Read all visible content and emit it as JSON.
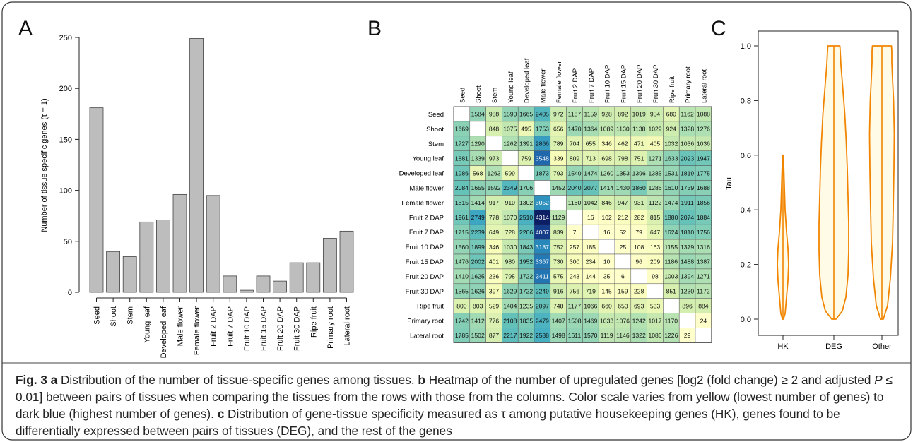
{
  "panel_a": {
    "label": "A"
  },
  "panel_b": {
    "label": "B"
  },
  "panel_c": {
    "label": "C"
  },
  "chart_data": [
    {
      "type": "bar",
      "ylabel": "Number of tissue specific genes (τ = 1)",
      "ylim": [
        0,
        250
      ],
      "yticks": [
        0,
        50,
        100,
        150,
        200,
        250
      ],
      "categories": [
        "Seed",
        "Shoot",
        "Stem",
        "Young leaf",
        "Developed leaf",
        "Male flower",
        "Female flower",
        "Fruit 2 DAP",
        "Fruit 7 DAP",
        "Fruit 10 DAP",
        "Fruit 15 DAP",
        "Fruit 20 DAP",
        "Fruit 30 DAP",
        "Ripe fruit",
        "Primary root",
        "Lateral root"
      ],
      "values": [
        181,
        40,
        35,
        69,
        71,
        96,
        249,
        95,
        16,
        2,
        16,
        11,
        29,
        29,
        53,
        60
      ],
      "colors": {
        "bar": "#bdbdbd"
      },
      "grid": false
    },
    {
      "type": "heatmap",
      "rows": [
        "Seed",
        "Shoot",
        "Stem",
        "Young leaf",
        "Developed leaf",
        "Male flower",
        "Female flower",
        "Fruit 2 DAP",
        "Fruit 7 DAP",
        "Fruit 10 DAP",
        "Fruit 15 DAP",
        "Fruit 20 DAP",
        "Fruit 30 DAP",
        "Ripe fruit",
        "Primary root",
        "Lateral root"
      ],
      "columns": [
        "Seed",
        "Shoot",
        "Stem",
        "Young leaf",
        "Developed leaf",
        "Male flower",
        "Female flower",
        "Fruit 2 DAP",
        "Fruit 7 DAP",
        "Fruit 10 DAP",
        "Fruit 15 DAP",
        "Fruit 20 DAP",
        "Fruit 30 DAP",
        "Ripe fruit",
        "Primary root",
        "Lateral root"
      ],
      "values": [
        [
          null,
          1584,
          988,
          1590,
          1665,
          2405,
          972,
          1187,
          1159,
          928,
          892,
          1019,
          954,
          680,
          1162,
          1088
        ],
        [
          1669,
          null,
          848,
          1075,
          495,
          1753,
          656,
          1470,
          1364,
          1089,
          1130,
          1138,
          1029,
          924,
          1328,
          1276
        ],
        [
          1727,
          1290,
          null,
          1262,
          1391,
          2866,
          789,
          704,
          655,
          346,
          462,
          471,
          405,
          1032,
          1036,
          1036
        ],
        [
          1881,
          1339,
          973,
          null,
          759,
          3548,
          339,
          809,
          713,
          698,
          798,
          751,
          1271,
          1633,
          2023,
          1947
        ],
        [
          1986,
          568,
          1263,
          599,
          null,
          1873,
          793,
          1540,
          1474,
          1260,
          1353,
          1396,
          1385,
          1531,
          1819,
          1775
        ],
        [
          2084,
          1655,
          1592,
          2349,
          1706,
          null,
          1452,
          2040,
          2077,
          1414,
          1430,
          1860,
          1286,
          1610,
          1739,
          1688
        ],
        [
          1815,
          1414,
          917,
          910,
          1302,
          3052,
          null,
          1160,
          1042,
          846,
          947,
          931,
          1122,
          1474,
          1911,
          1856
        ],
        [
          1961,
          2749,
          778,
          1070,
          2510,
          4314,
          1129,
          null,
          16,
          102,
          212,
          282,
          815,
          1880,
          2074,
          1884
        ],
        [
          1715,
          2239,
          649,
          728,
          2206,
          4007,
          839,
          7,
          null,
          16,
          52,
          79,
          647,
          1624,
          1810,
          1756
        ],
        [
          1560,
          1899,
          346,
          1030,
          1843,
          3187,
          752,
          257,
          185,
          null,
          25,
          108,
          163,
          1155,
          1379,
          1316
        ],
        [
          1476,
          2002,
          401,
          980,
          1952,
          3367,
          730,
          300,
          234,
          10,
          null,
          96,
          209,
          1186,
          1488,
          1387
        ],
        [
          1410,
          1625,
          236,
          795,
          1722,
          3411,
          575,
          243,
          144,
          35,
          6,
          null,
          98,
          1003,
          1394,
          1271
        ],
        [
          1565,
          1626,
          397,
          1629,
          1722,
          2249,
          916,
          756,
          719,
          145,
          159,
          228,
          null,
          851,
          1230,
          1172
        ],
        [
          800,
          803,
          529,
          1404,
          1235,
          2097,
          748,
          1177,
          1066,
          660,
          650,
          693,
          533,
          null,
          896,
          884
        ],
        [
          1742,
          1412,
          776,
          2108,
          1835,
          2479,
          1407,
          1508,
          1469,
          1033,
          1076,
          1242,
          1017,
          1170,
          null,
          24
        ],
        [
          1785,
          1502,
          877,
          2217,
          1922,
          2588,
          1498,
          1611,
          1570,
          1119,
          1146,
          1322,
          1086,
          1226,
          29,
          null
        ]
      ],
      "color_scale": {
        "low": "#ffffcc",
        "mid": "#41b6c4",
        "high": "#0c2c84"
      }
    },
    {
      "type": "violin",
      "ylabel": "Tau",
      "ylim": [
        0,
        1
      ],
      "yticks": [
        "0.0",
        "0.2",
        "0.4",
        "0.6",
        "0.8",
        "1.0"
      ],
      "categories": [
        "HK",
        "DEG",
        "Other"
      ],
      "ranges": [
        [
          0.0,
          0.6
        ],
        [
          0.0,
          1.0
        ],
        [
          0.0,
          1.0
        ]
      ],
      "colors": {
        "stroke": "#f28500",
        "fill": "#fffbe6"
      }
    }
  ],
  "caption": {
    "fig_label": "Fig. 3",
    "a_label": "a",
    "a_text": "Distribution of the number of tissue-specific genes among tissues.",
    "b_label": "b",
    "b_text_1": "Heatmap of the number of upregulated genes [log2 (fold change) ≥ 2 and adjusted",
    "b_p": "P",
    "b_text_2": "≤ 0.01] between pairs of tissues when comparing the tissues from the rows with those from the columns. Color scale varies from yellow (lowest number of genes) to dark blue (highest number of genes).",
    "c_label": "c",
    "c_text": "Distribution of gene-tissue specificity measured as τ among putative housekeeping genes (HK), genes found to be differentially expressed between pairs of tissues (DEG), and the rest of the genes"
  }
}
